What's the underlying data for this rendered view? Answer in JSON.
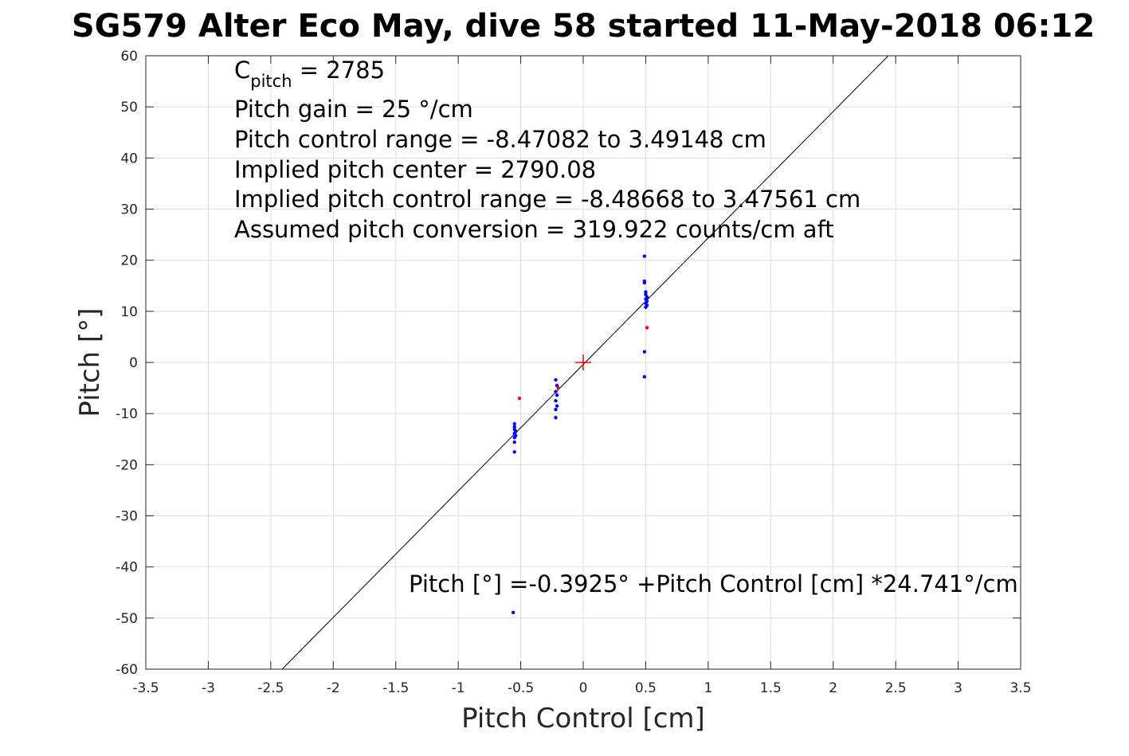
{
  "chart_data": {
    "type": "scatter",
    "title": "SG579 Alter Eco May, dive 58 started 11-May-2018 06:12",
    "xlabel": "Pitch Control [cm]",
    "ylabel": "Pitch [°]",
    "xlim": [
      -3.5,
      3.5
    ],
    "ylim": [
      -60,
      60
    ],
    "xticks": [
      -3.5,
      -3,
      -2.5,
      -2,
      -1.5,
      -1,
      -0.5,
      0,
      0.5,
      1,
      1.5,
      2,
      2.5,
      3,
      3.5
    ],
    "xtick_labels": [
      "-3.5",
      "-3",
      "-2.5",
      "-2",
      "-1.5",
      "-1",
      "-0.5",
      "0",
      "0.5",
      "1",
      "1.5",
      "2",
      "2.5",
      "3",
      "3.5"
    ],
    "yticks": [
      -60,
      -50,
      -40,
      -30,
      -20,
      -10,
      0,
      10,
      20,
      30,
      40,
      50,
      60
    ],
    "ytick_labels": [
      "-60",
      "-50",
      "-40",
      "-30",
      "-20",
      "-10",
      "0",
      "10",
      "20",
      "30",
      "40",
      "50",
      "60"
    ],
    "grid": true,
    "series": [
      {
        "color": "#0000ff",
        "marker": "dot",
        "points": [
          [
            0.49,
            20.8
          ],
          [
            0.49,
            15.9
          ],
          [
            0.49,
            15.6
          ],
          [
            0.5,
            13.8
          ],
          [
            0.5,
            13.3
          ],
          [
            0.51,
            12.8
          ],
          [
            0.5,
            12.4
          ],
          [
            0.51,
            12.0
          ],
          [
            0.5,
            11.6
          ],
          [
            0.51,
            11.2
          ],
          [
            0.5,
            10.8
          ],
          [
            0.49,
            2.1
          ],
          [
            0.49,
            -2.8
          ],
          [
            -0.22,
            -3.4
          ],
          [
            -0.21,
            -4.5
          ],
          [
            -0.22,
            -5.7
          ],
          [
            -0.21,
            -6.4
          ],
          [
            -0.22,
            -7.5
          ],
          [
            -0.21,
            -8.5
          ],
          [
            -0.22,
            -9.2
          ],
          [
            -0.22,
            -10.8
          ],
          [
            -0.55,
            -12.0
          ],
          [
            -0.55,
            -12.6
          ],
          [
            -0.55,
            -13.1
          ],
          [
            -0.54,
            -13.5
          ],
          [
            -0.55,
            -13.9
          ],
          [
            -0.54,
            -14.3
          ],
          [
            -0.55,
            -14.7
          ],
          [
            -0.55,
            -15.6
          ],
          [
            -0.55,
            -17.5
          ],
          [
            -0.56,
            -48.9
          ]
        ]
      },
      {
        "color": "#ff0000",
        "marker": "dot",
        "points": [
          [
            0.51,
            6.8
          ],
          [
            -0.51,
            -7.0
          ],
          [
            -0.2,
            -5.0
          ]
        ]
      }
    ],
    "center_marker": {
      "x": 0,
      "y": 0,
      "color": "#ff0000",
      "marker": "plus"
    },
    "fit_line": {
      "intercept": -0.3925,
      "slope": 24.741,
      "color": "#000000"
    },
    "annotations": {
      "cpitch_base": "C",
      "cpitch_sub": "pitch",
      "cpitch_value": " = 2785",
      "lines": [
        "Pitch gain = 25 °/cm",
        "Pitch control range = -8.47082 to 3.49148 cm",
        "Implied pitch center = 2790.08",
        "Implied pitch control range = -8.48668 to 3.47561 cm",
        "Assumed pitch conversion = 319.922 counts/cm aft"
      ],
      "fit_text": "Pitch [°] =-0.3925° +Pitch Control [cm] *24.741°/cm"
    }
  }
}
